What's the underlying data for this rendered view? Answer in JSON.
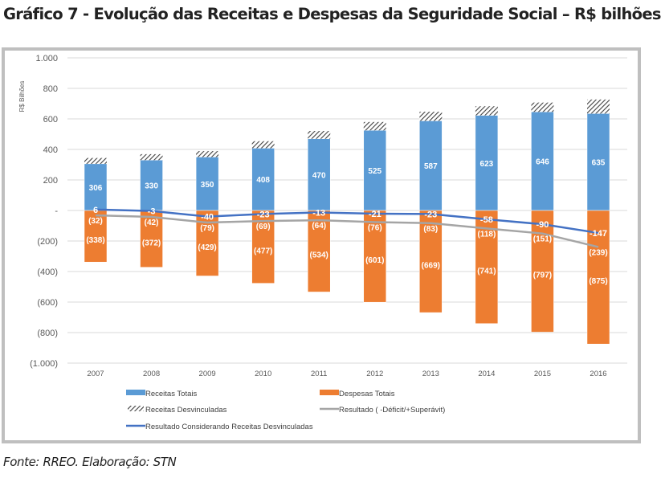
{
  "page": {
    "title": "Gráfico 7 - Evolução das Receitas e Despesas da Seguridade Social – R$ bilhões",
    "source": "Fonte: RREO. Elaboração: STN"
  },
  "chart_data": {
    "type": "bar",
    "title": "Gráfico 7 - Evolução das Receitas e Despesas da Seguridade Social – R$ bilhões",
    "xlabel": "",
    "ylabel": "R$ Bilhões",
    "ylim": [
      -1000,
      1000
    ],
    "yticks": [
      1000,
      800,
      600,
      400,
      200,
      0,
      -200,
      -400,
      -600,
      -800,
      -1000
    ],
    "ytick_labels": [
      "1.000",
      "800",
      "600",
      "400",
      "200",
      "-",
      "(200)",
      "(400)",
      "(600)",
      "(800)",
      "(1.000)"
    ],
    "grid": true,
    "legend_position": "bottom",
    "categories": [
      "2007",
      "2008",
      "2009",
      "2010",
      "2011",
      "2012",
      "2013",
      "2014",
      "2015",
      "2016"
    ],
    "series": [
      {
        "name": "Receitas Totais",
        "kind": "bar-stacked",
        "color": "#5b9bd5",
        "values": [
          306,
          330,
          350,
          408,
          470,
          525,
          587,
          623,
          646,
          635
        ],
        "labels": [
          "306",
          "330",
          "350",
          "408",
          "470",
          "525",
          "587",
          "623",
          "646",
          "635"
        ]
      },
      {
        "name": "Despesas Totais",
        "kind": "bar",
        "color": "#ed7d31",
        "values": [
          -338,
          -372,
          -429,
          -477,
          -534,
          -601,
          -669,
          -741,
          -797,
          -875
        ],
        "labels": [
          "(338)",
          "(372)",
          "(429)",
          "(477)",
          "(534)",
          "(601)",
          "(669)",
          "(741)",
          "(797)",
          "(875)"
        ]
      },
      {
        "name": "Receitas Desvinculadas",
        "kind": "bar-stacked-hatched",
        "color": "#404040",
        "values": [
          38,
          39,
          39,
          46,
          51,
          55,
          60,
          60,
          61,
          92
        ]
      },
      {
        "name": "Resultado ( -Déficit/+Superávit)",
        "kind": "line",
        "color": "#a5a5a5",
        "values": [
          -32,
          -42,
          -79,
          -69,
          -64,
          -76,
          -83,
          -118,
          -151,
          -239
        ],
        "labels": [
          "(32)",
          "(42)",
          "(79)",
          "(69)",
          "(64)",
          "(76)",
          "(83)",
          "(118)",
          "(151)",
          "(239)"
        ]
      },
      {
        "name": "Resultado Considerando Receitas Desvinculadas",
        "kind": "line",
        "color": "#4472c4",
        "values": [
          6,
          -3,
          -40,
          -23,
          -13,
          -21,
          -23,
          -58,
          -90,
          -147
        ],
        "labels": [
          "6",
          "-3",
          "-40",
          "-23",
          "-13",
          "-21",
          "-23",
          "-58",
          "-90",
          "-147"
        ]
      }
    ],
    "legend": [
      {
        "label": "Receitas Totais",
        "swatch": "bar",
        "color": "#5b9bd5"
      },
      {
        "label": "Despesas Totais",
        "swatch": "bar",
        "color": "#ed7d31"
      },
      {
        "label": "Receitas Desvinculadas",
        "swatch": "hatch",
        "color": "#404040"
      },
      {
        "label": "Resultado ( -Déficit/+Superávit)",
        "swatch": "line",
        "color": "#a5a5a5"
      },
      {
        "label": "Resultado Considerando Receitas Desvinculadas",
        "swatch": "line",
        "color": "#4472c4"
      }
    ]
  }
}
